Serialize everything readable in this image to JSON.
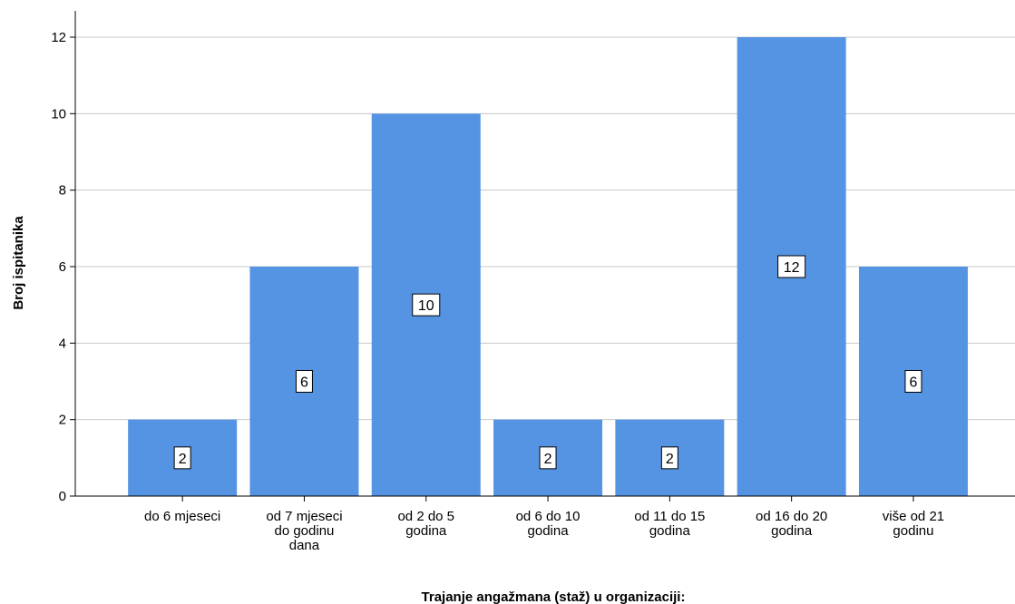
{
  "chart_data": {
    "type": "bar",
    "categories": [
      [
        "do 6 mjeseci"
      ],
      [
        "od 7 mjeseci",
        "do godinu",
        "dana"
      ],
      [
        "od 2 do 5",
        "godina"
      ],
      [
        "od 6 do 10",
        "godina"
      ],
      [
        "od 11 do 15",
        "godina"
      ],
      [
        "od 16 do 20",
        "godina"
      ],
      [
        "više od 21",
        "godinu"
      ]
    ],
    "values": [
      2,
      6,
      10,
      2,
      2,
      12,
      6
    ],
    "data_labels": [
      "2",
      "6",
      "10",
      "2",
      "2",
      "12",
      "6"
    ],
    "xlabel": "Trajanje angažmana (staž) u organizaciji:",
    "ylabel": "Broj ispitanika",
    "ylim": [
      0,
      12
    ],
    "yticks": [
      0,
      2,
      4,
      6,
      8,
      10,
      12
    ],
    "grid": true,
    "bar_color": "#5594e3",
    "gridline_color": "#c8c8c8",
    "axis_color": "#000000"
  }
}
